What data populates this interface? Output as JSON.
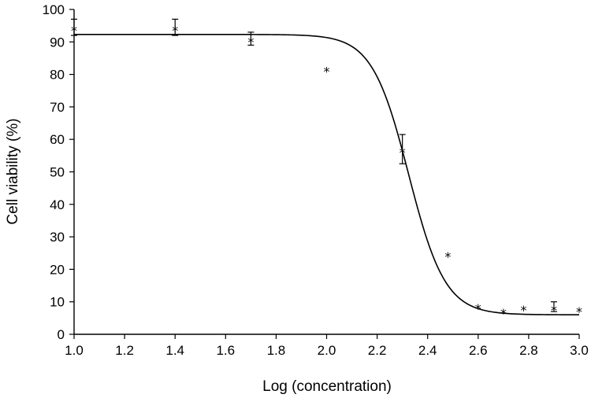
{
  "chart_data": {
    "type": "scatter",
    "title": "",
    "xlabel": "Log (concentration)",
    "ylabel": "Cell viability (%)",
    "xlim": [
      1.0,
      3.0
    ],
    "ylim": [
      0,
      100
    ],
    "x_ticks": [
      "1.0",
      "1.2",
      "1.4",
      "1.6",
      "1.8",
      "2.0",
      "2.2",
      "2.4",
      "2.6",
      "2.8",
      "3.0"
    ],
    "y_ticks": [
      "0",
      "10",
      "20",
      "30",
      "40",
      "50",
      "60",
      "70",
      "80",
      "90",
      "100"
    ],
    "grid": false,
    "marker": "*",
    "points": [
      {
        "x": 1.0,
        "y": 94.5,
        "err": 2.5
      },
      {
        "x": 1.4,
        "y": 94.5,
        "err": 2.5
      },
      {
        "x": 1.7,
        "y": 91.0,
        "err": 2.0
      },
      {
        "x": 2.0,
        "y": 82.0
      },
      {
        "x": 2.3,
        "y": 57.0,
        "err": 4.5
      },
      {
        "x": 2.48,
        "y": 25.0
      },
      {
        "x": 2.6,
        "y": 9.0
      },
      {
        "x": 2.7,
        "y": 7.5
      },
      {
        "x": 2.78,
        "y": 8.5
      },
      {
        "x": 2.9,
        "y": 8.5,
        "err": 1.5
      },
      {
        "x": 3.0,
        "y": 8.0
      }
    ],
    "fit_curve": {
      "model": "four-parameter logistic",
      "top": 92.3,
      "bottom": 6.0,
      "log_ic50": 2.325,
      "hill_slope": 6.0
    }
  }
}
